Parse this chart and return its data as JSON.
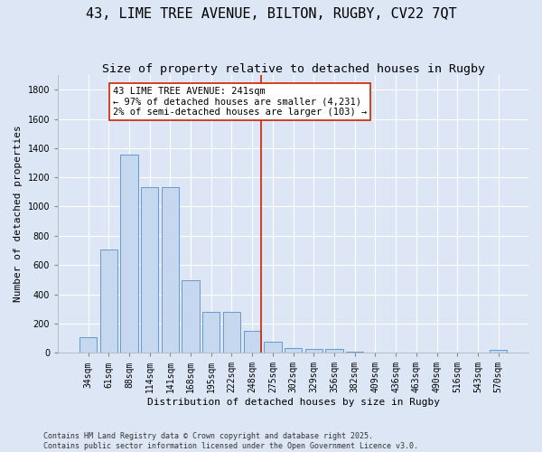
{
  "title": "43, LIME TREE AVENUE, BILTON, RUGBY, CV22 7QT",
  "subtitle": "Size of property relative to detached houses in Rugby",
  "xlabel": "Distribution of detached houses by size in Rugby",
  "ylabel": "Number of detached properties",
  "background_color": "#dce6f5",
  "bar_color": "#c5d8f0",
  "bar_edge_color": "#6699cc",
  "categories": [
    "34sqm",
    "61sqm",
    "88sqm",
    "114sqm",
    "141sqm",
    "168sqm",
    "195sqm",
    "222sqm",
    "248sqm",
    "275sqm",
    "302sqm",
    "329sqm",
    "356sqm",
    "382sqm",
    "409sqm",
    "436sqm",
    "463sqm",
    "490sqm",
    "516sqm",
    "543sqm",
    "570sqm"
  ],
  "values": [
    105,
    705,
    1355,
    1130,
    1130,
    495,
    280,
    280,
    150,
    75,
    30,
    25,
    28,
    5,
    3,
    3,
    3,
    3,
    3,
    3,
    20
  ],
  "ylim": [
    0,
    1900
  ],
  "yticks": [
    0,
    200,
    400,
    600,
    800,
    1000,
    1200,
    1400,
    1600,
    1800
  ],
  "vline_idx": 8,
  "vline_color": "#cc2200",
  "annotation_text": "43 LIME TREE AVENUE: 241sqm\n← 97% of detached houses are smaller (4,231)\n2% of semi-detached houses are larger (103) →",
  "annotation_box_color": "#ffffff",
  "annotation_box_edge": "#cc2200",
  "footer": "Contains HM Land Registry data © Crown copyright and database right 2025.\nContains public sector information licensed under the Open Government Licence v3.0.",
  "title_fontsize": 11,
  "subtitle_fontsize": 9.5,
  "ylabel_fontsize": 8,
  "xlabel_fontsize": 8,
  "tick_fontsize": 7,
  "annot_fontsize": 7.5,
  "footer_fontsize": 6
}
